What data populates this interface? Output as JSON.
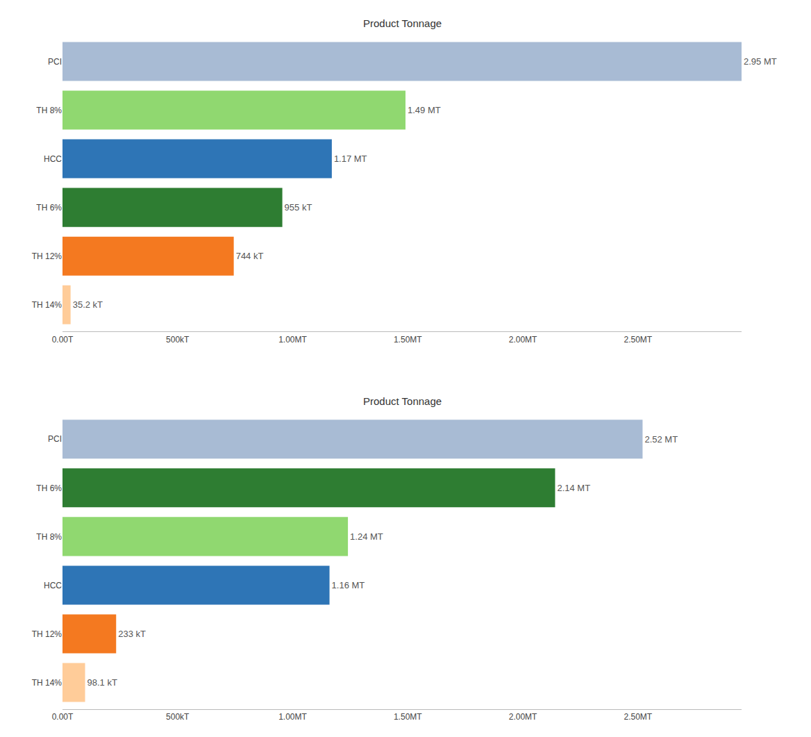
{
  "chart_data": [
    {
      "type": "bar",
      "orientation": "horizontal",
      "title": "Product Tonnage",
      "categories": [
        "PCI",
        "TH 8%",
        "HCC",
        "TH 6%",
        "TH 12%",
        "TH 14%"
      ],
      "values": [
        2950000,
        1490000,
        1170000,
        955000,
        744000,
        35200
      ],
      "value_labels": [
        "2.95 MT",
        "1.49 MT",
        "1.17 MT",
        "955 kT",
        "744 kT",
        "35.2 kT"
      ],
      "data_labels": true,
      "colors": [
        "#a8bbd4",
        "#90d870",
        "#2e75b6",
        "#2e7d32",
        "#f47920",
        "#ffcc99"
      ],
      "xlim": [
        0,
        2950000
      ],
      "xticks": [
        {
          "value": 0,
          "label": "0.00T"
        },
        {
          "value": 500000,
          "label": "500kT"
        },
        {
          "value": 1000000,
          "label": "1.00MT"
        },
        {
          "value": 1500000,
          "label": "1.50MT"
        },
        {
          "value": 2000000,
          "label": "2.00MT"
        },
        {
          "value": 2500000,
          "label": "2.50MT"
        }
      ],
      "grid": false
    },
    {
      "type": "bar",
      "orientation": "horizontal",
      "title": "Product Tonnage",
      "categories": [
        "PCI",
        "TH 6%",
        "TH 8%",
        "HCC",
        "TH 12%",
        "TH 14%"
      ],
      "values": [
        2520000,
        2140000,
        1240000,
        1160000,
        233000,
        98100
      ],
      "value_labels": [
        "2.52 MT",
        "2.14 MT",
        "1.24 MT",
        "1.16 MT",
        "233 kT",
        "98.1 kT"
      ],
      "data_labels": true,
      "colors": [
        "#a8bbd4",
        "#2e7d32",
        "#90d870",
        "#2e75b6",
        "#f47920",
        "#ffcc99"
      ],
      "xlim": [
        0,
        2950000
      ],
      "xticks": [
        {
          "value": 0,
          "label": "0.00T"
        },
        {
          "value": 500000,
          "label": "500kT"
        },
        {
          "value": 1000000,
          "label": "1.00MT"
        },
        {
          "value": 1500000,
          "label": "1.50MT"
        },
        {
          "value": 2000000,
          "label": "2.00MT"
        },
        {
          "value": 2500000,
          "label": "2.50MT"
        }
      ],
      "grid": false
    }
  ]
}
